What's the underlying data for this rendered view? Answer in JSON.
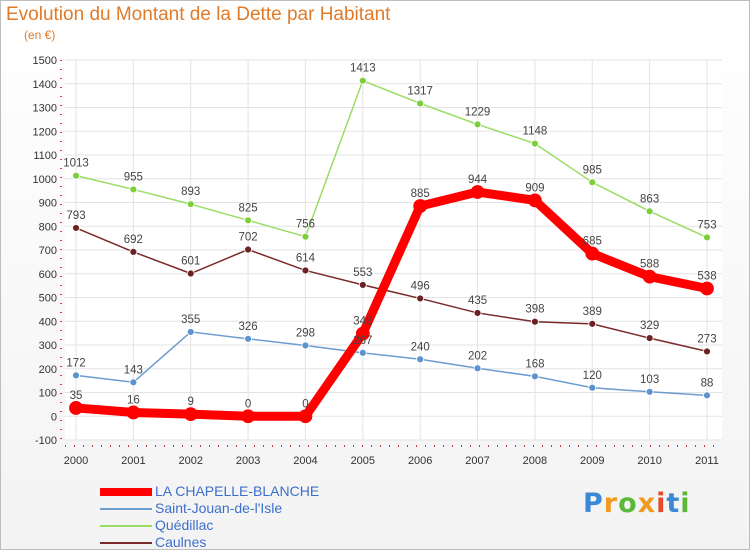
{
  "chart_data": {
    "type": "line",
    "title": "Evolution du Montant de la Dette par Habitant",
    "subtitle": "(en €)",
    "xlabel": "",
    "ylabel": "",
    "x": [
      "2000",
      "2001",
      "2002",
      "2003",
      "2004",
      "2005",
      "2006",
      "2007",
      "2008",
      "2009",
      "2010",
      "2011"
    ],
    "ylim": [
      -100,
      1500
    ],
    "yticks": [
      -100,
      0,
      100,
      200,
      300,
      400,
      500,
      600,
      700,
      800,
      900,
      1000,
      1100,
      1200,
      1300,
      1400,
      1500
    ],
    "grid": true,
    "legend_position": "bottom-left",
    "series": [
      {
        "name": "LA CHAPELLE-BLANCHE",
        "color": "#ff0000",
        "point_color": "#ff0000",
        "emphasis": true,
        "values": [
          35,
          16,
          9,
          0,
          0,
          348,
          885,
          944,
          909,
          685,
          588,
          538
        ]
      },
      {
        "name": "Saint-Jouan-de-l'Isle",
        "color": "#6c9cd0",
        "point_color": "#5e92cf",
        "emphasis": false,
        "values": [
          172,
          143,
          355,
          326,
          298,
          267,
          240,
          202,
          168,
          120,
          103,
          88
        ]
      },
      {
        "name": "Quédillac",
        "color": "#99dd66",
        "point_color": "#7ccf3a",
        "emphasis": false,
        "values": [
          1013,
          955,
          893,
          825,
          756,
          1413,
          1317,
          1229,
          1148,
          985,
          863,
          753
        ]
      },
      {
        "name": "Caulnes",
        "color": "#7a2a2a",
        "point_color": "#6b2222",
        "emphasis": false,
        "values": [
          793,
          692,
          601,
          702,
          614,
          553,
          496,
          435,
          398,
          389,
          329,
          273
        ]
      }
    ]
  },
  "logo": {
    "letters": [
      "P",
      "r",
      "o",
      "x",
      "i",
      "t",
      "i"
    ],
    "colors": [
      "#3a88d6",
      "#f29a1f",
      "#5cb83a",
      "#f29a1f",
      "#e84a2c",
      "#3a88d6",
      "#5cb83a"
    ]
  }
}
